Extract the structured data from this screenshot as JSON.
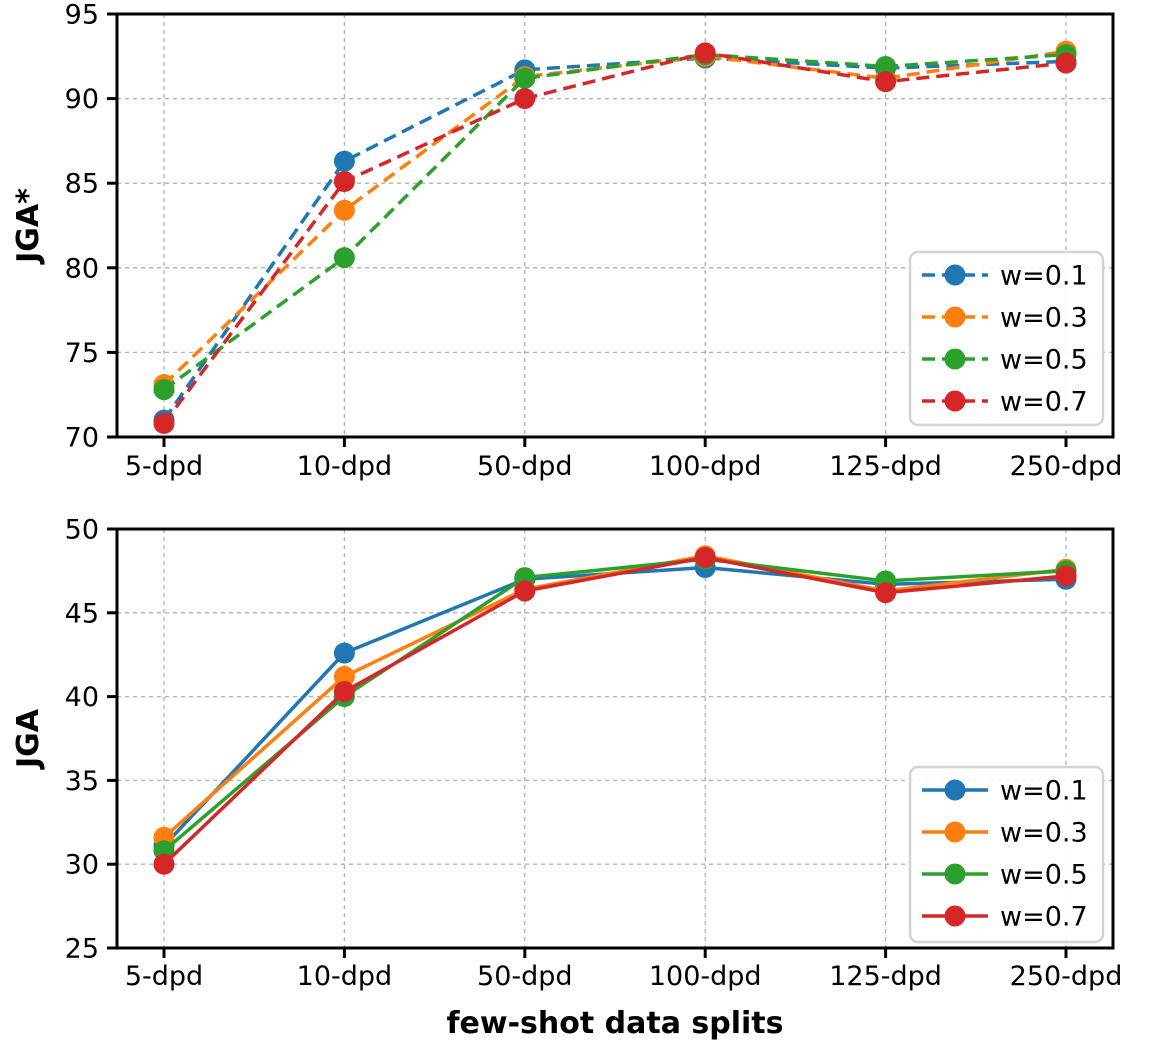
{
  "figure": {
    "xlabel": "few-shot data splits",
    "grid_color": "#b0b0b0",
    "spine_color": "#000000",
    "legend_border_color": "#d3d3d3",
    "legend_background": "#ffffff"
  },
  "chart_data": [
    {
      "type": "line",
      "title": "",
      "ylabel": "JGA*",
      "xlabel": "",
      "categories": [
        "5-dpd",
        "10-dpd",
        "50-dpd",
        "100-dpd",
        "125-dpd",
        "250-dpd"
      ],
      "ylim": [
        70,
        95
      ],
      "yticks": [
        70,
        75,
        80,
        85,
        90,
        95
      ],
      "grid": true,
      "line_style": "dashed",
      "legend_position": "center right",
      "legend_labels": [
        "w=0.1",
        "w=0.3",
        "w=0.5",
        "w=0.7"
      ],
      "series": [
        {
          "name": "w=0.1",
          "color": "#1f77b4",
          "values": [
            71.0,
            86.3,
            91.7,
            92.4,
            91.8,
            92.2
          ]
        },
        {
          "name": "w=0.3",
          "color": "#ff7f0e",
          "values": [
            73.1,
            83.4,
            91.3,
            92.5,
            91.2,
            92.8
          ]
        },
        {
          "name": "w=0.5",
          "color": "#2ca02c",
          "values": [
            72.8,
            80.6,
            91.2,
            92.6,
            91.9,
            92.6
          ]
        },
        {
          "name": "w=0.7",
          "color": "#d62728",
          "values": [
            70.8,
            85.1,
            90.0,
            92.7,
            91.0,
            92.1
          ]
        }
      ]
    },
    {
      "type": "line",
      "title": "",
      "ylabel": "JGA",
      "xlabel": "few-shot data splits",
      "categories": [
        "5-dpd",
        "10-dpd",
        "50-dpd",
        "100-dpd",
        "125-dpd",
        "250-dpd"
      ],
      "ylim": [
        25,
        50
      ],
      "yticks": [
        25,
        30,
        35,
        40,
        45,
        50
      ],
      "grid": true,
      "line_style": "solid",
      "legend_position": "center right",
      "legend_labels": [
        "w=0.1",
        "w=0.3",
        "w=0.5",
        "w=0.7"
      ],
      "series": [
        {
          "name": "w=0.1",
          "color": "#1f77b4",
          "values": [
            31.1,
            42.6,
            47.0,
            47.7,
            46.7,
            47.0
          ]
        },
        {
          "name": "w=0.3",
          "color": "#ff7f0e",
          "values": [
            31.6,
            41.2,
            46.4,
            48.4,
            46.3,
            47.6
          ]
        },
        {
          "name": "w=0.5",
          "color": "#2ca02c",
          "values": [
            30.8,
            40.0,
            47.1,
            48.2,
            46.9,
            47.5
          ]
        },
        {
          "name": "w=0.7",
          "color": "#d62728",
          "values": [
            30.0,
            40.3,
            46.3,
            48.3,
            46.2,
            47.2
          ]
        }
      ]
    }
  ]
}
